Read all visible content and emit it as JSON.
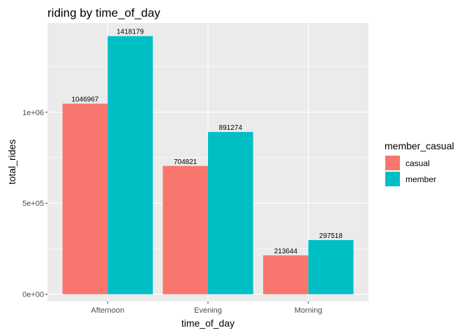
{
  "chart_data": {
    "type": "bar",
    "title": "riding by time_of_day",
    "xlabel": "time_of_day",
    "ylabel": "total_rides",
    "categories": [
      "Afternoon",
      "Evening",
      "Morning"
    ],
    "series": [
      {
        "name": "casual",
        "values": [
          1046967,
          704821,
          213644
        ],
        "color": "#F8766D"
      },
      {
        "name": "member",
        "values": [
          1418179,
          891274,
          297518
        ],
        "color": "#00BFC4"
      }
    ],
    "ylim": [
      -40000,
      1490000
    ],
    "yticks": [
      0,
      500000,
      1000000
    ],
    "ytick_labels": [
      "0e+00",
      "5e+05",
      "1e+06"
    ],
    "legend": {
      "title": "member_casual",
      "position": "right"
    },
    "grid": true,
    "panel_color": "#EBEBEB"
  }
}
